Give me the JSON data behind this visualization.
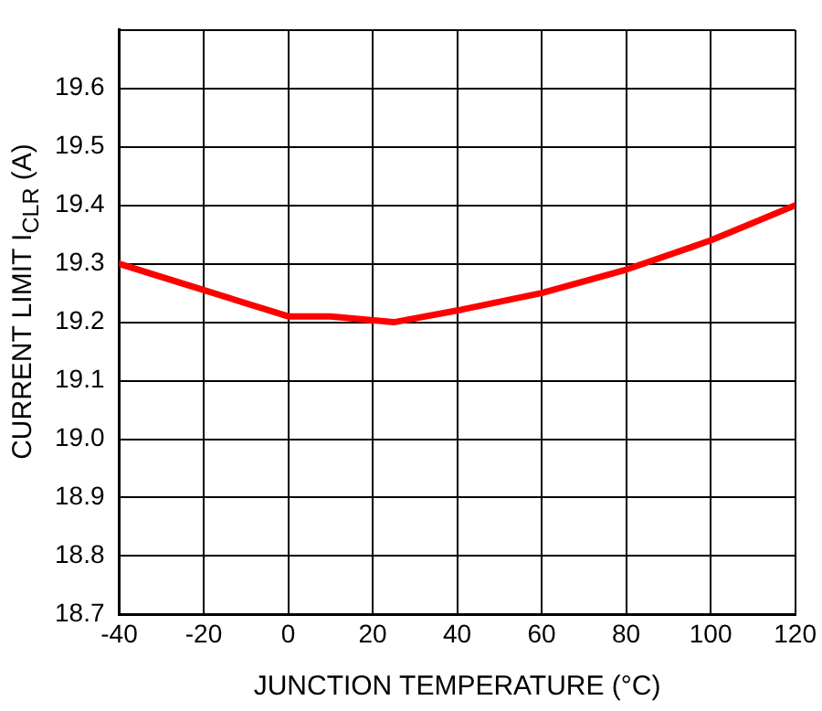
{
  "chart_data": {
    "type": "line",
    "xlabel": "JUNCTION TEMPERATURE (°C)",
    "ylabel": "CURRENT LIMIT I$_{CLR}$ (A)",
    "x": [
      -40,
      -20,
      0,
      10,
      25,
      40,
      60,
      80,
      100,
      120
    ],
    "series": [
      {
        "color": "#ff0000",
        "values": [
          19.3,
          19.255,
          19.21,
          19.21,
          19.2,
          19.22,
          19.25,
          19.29,
          19.34,
          19.4
        ]
      }
    ],
    "xlim": [
      -40,
      120
    ],
    "xticks": [
      -40,
      -20,
      0,
      20,
      40,
      60,
      80,
      100,
      120
    ],
    "ylim": [
      18.7,
      19.7
    ],
    "yticks": [
      18.7,
      18.8,
      18.9,
      {
        "value": 19,
        "label": "19.0"
      },
      19.1,
      19.2,
      19.3,
      19.4,
      19.5,
      19.6,
      {
        "value": 19.7,
        "label": null
      }
    ],
    "grid": true,
    "legend": false,
    "marker": "none",
    "line_style": "solid"
  }
}
